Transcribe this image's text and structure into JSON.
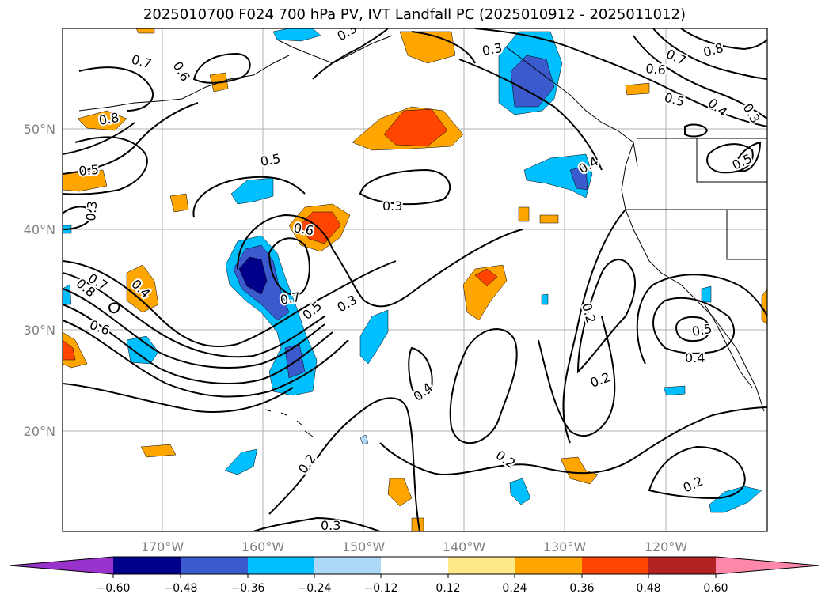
{
  "title": "2025010700 F024 700 hPa PV, IVT Landfall PC (2025010912 - 2025011012)",
  "map": {
    "lat_labels": [
      "50°N",
      "40°N",
      "30°N",
      "20°N"
    ],
    "lon_labels": [
      "170°W",
      "160°W",
      "150°W",
      "140°W",
      "130°W",
      "120°W"
    ],
    "grid": true,
    "contour_labels": [
      "0.7",
      "0.6",
      "0.8",
      "0.5",
      "0.3",
      "0.8",
      "0.7",
      "0.4",
      "0.6",
      "0.5",
      "0.3",
      "0.6",
      "0.7",
      "0.5",
      "0.3",
      "0.3",
      "0.4",
      "0.2",
      "0.2",
      "0.4",
      "0.2",
      "0.2",
      "0.3",
      "0.2",
      "0.5",
      "0.4",
      "0.3",
      "0.8",
      "0.7",
      "0.6",
      "0.5",
      "0.4",
      "0.3",
      "0.5"
    ]
  },
  "colorbar": {
    "ticks": [
      "−0.60",
      "−0.48",
      "−0.36",
      "−0.24",
      "−0.12",
      "0.12",
      "0.24",
      "0.36",
      "0.48",
      "0.60"
    ],
    "colors": [
      "#9932cc",
      "#00008b",
      "#3a5acd",
      "#00bfff",
      "#add8f8",
      "#ffffff",
      "#ffe88a",
      "#ffa500",
      "#ff4500",
      "#b22222",
      "#ff88aa"
    ]
  },
  "shading_colors": {
    "neg_strong": "#00008b",
    "neg_mid": "#3a5acd",
    "neg": "#00bfff",
    "neg_weak": "#add8f8",
    "pos_weak": "#ffe88a",
    "pos": "#ffa500",
    "pos_mid": "#ff4500",
    "pos_strong": "#b22222"
  }
}
